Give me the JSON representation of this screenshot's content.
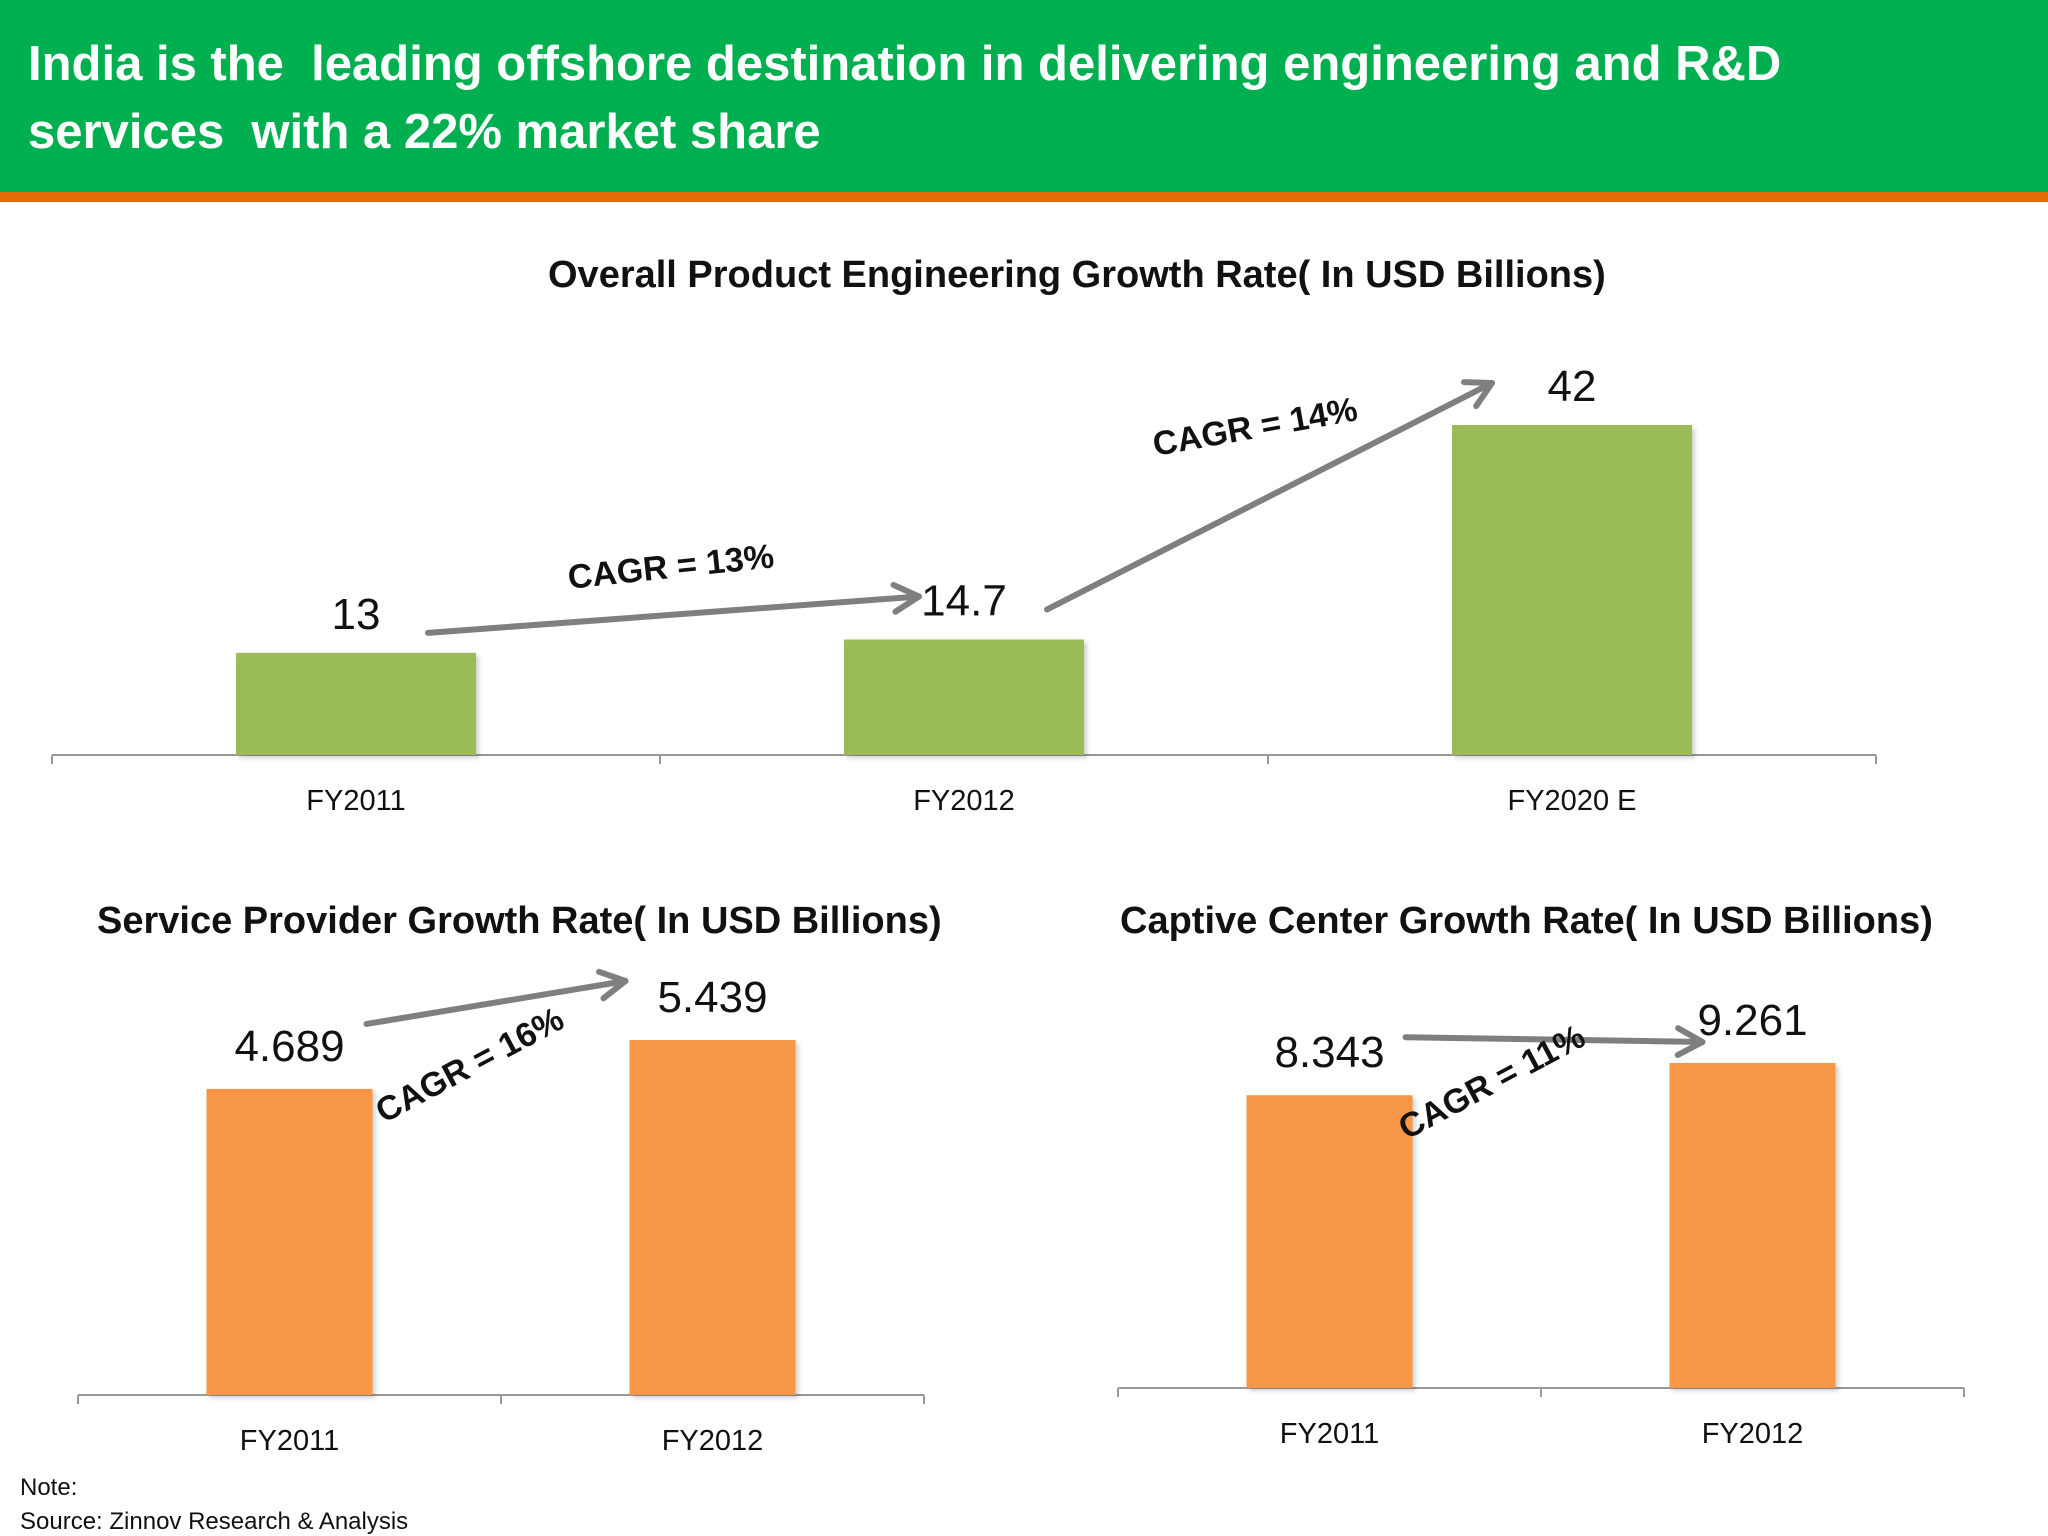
{
  "header": {
    "title": "India is the  leading offshore destination in delivering engineering and R&D services  with a 22% market share"
  },
  "colors": {
    "header_bg": "#00b050",
    "header_border": "#e36c09",
    "green_bar": "#9bbb59",
    "orange_bar": "#f79646",
    "arrow": "#7f7f7f",
    "axis": "#999999"
  },
  "chart_data": [
    {
      "type": "bar",
      "title": "Overall Product Engineering Growth Rate( In USD Billions)",
      "categories": [
        "FY2011",
        "FY2012",
        "FY2020 E"
      ],
      "values": [
        13,
        14.7,
        42
      ],
      "value_labels": [
        "13",
        "14.7",
        "42"
      ],
      "annotations": [
        "CAGR = 13%",
        "CAGR = 14%"
      ],
      "ylim": [
        0,
        42
      ]
    },
    {
      "type": "bar",
      "title": "Service Provider Growth Rate( In USD Billions)",
      "categories": [
        "FY2011",
        "FY2012"
      ],
      "values": [
        4.689,
        5.439
      ],
      "value_labels": [
        "4.689",
        "5.439"
      ],
      "annotations": [
        "CAGR = 16%"
      ],
      "ylim": [
        0,
        5.439
      ]
    },
    {
      "type": "bar",
      "title": "Captive Center Growth Rate( In USD Billions)",
      "categories": [
        "FY2011",
        "FY2012"
      ],
      "values": [
        8.343,
        9.261
      ],
      "value_labels": [
        "8.343",
        "9.261"
      ],
      "annotations": [
        "CAGR = 11%"
      ],
      "ylim": [
        0,
        9.261
      ]
    }
  ],
  "footer": {
    "note": "Note:",
    "source": "Source: Zinnov Research & Analysis"
  }
}
